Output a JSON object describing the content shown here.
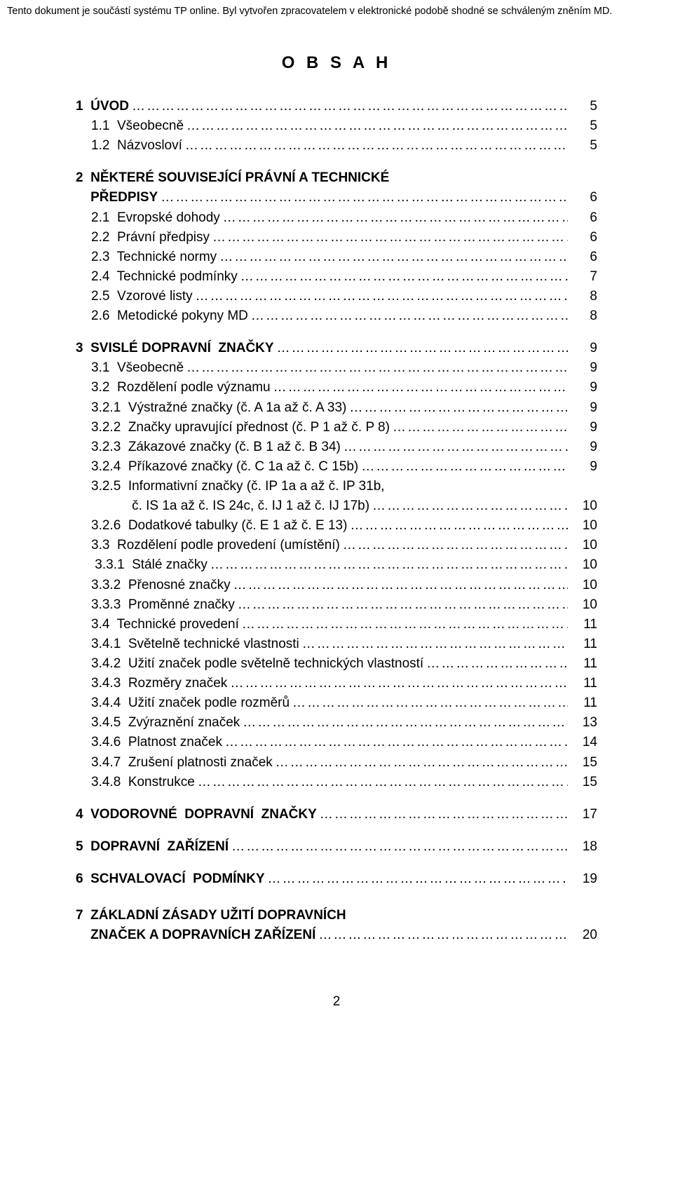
{
  "header_text": "Tento dokument je součástí systému TP online. Byl vytvořen zpracovatelem v elektronické podobě shodné se schváleným zněním MD.",
  "title": "O B S A H",
  "page_number": "2",
  "toc": [
    {
      "label": "1  ÚVOD",
      "page": "5",
      "bold": true,
      "indent": 0
    },
    {
      "label": "1.1  Všeobecně",
      "page": "5",
      "bold": false,
      "indent": 1
    },
    {
      "label": "1.2  Názvosloví",
      "page": "5",
      "bold": false,
      "indent": 1
    },
    {
      "gap": "m"
    },
    {
      "label": "2  NĚKTERÉ SOUVISEJÍCÍ PRÁVNÍ A TECHNICKÉ",
      "bold": true,
      "indent": 0,
      "nobreak": true
    },
    {
      "label": "    PŘEDPISY",
      "page": "6",
      "bold": true,
      "indent": 0
    },
    {
      "label": "2.1  Evropské dohody",
      "page": "6",
      "bold": false,
      "indent": 1
    },
    {
      "label": "2.2  Právní předpisy",
      "page": "6",
      "bold": false,
      "indent": 1
    },
    {
      "label": "2.3  Technické normy",
      "page": "6",
      "bold": false,
      "indent": 1
    },
    {
      "label": "2.4  Technické podmínky",
      "page": "7",
      "bold": false,
      "indent": 1
    },
    {
      "label": "2.5  Vzorové listy",
      "page": "8",
      "bold": false,
      "indent": 1
    },
    {
      "label": "2.6  Metodické pokyny MD",
      "page": "8",
      "bold": false,
      "indent": 1
    },
    {
      "gap": "m"
    },
    {
      "label": "3  SVISLÉ DOPRAVNÍ  ZNAČKY",
      "page": "9",
      "bold": true,
      "indent": 0
    },
    {
      "label": "3.1  Všeobecně",
      "page": "9",
      "bold": false,
      "indent": 1
    },
    {
      "label": "3.2  Rozdělení podle významu",
      "page": "9",
      "bold": false,
      "indent": 1
    },
    {
      "label": "3.2.1  Výstražné značky (č. A 1a až č. A 33)",
      "page": "9",
      "bold": false,
      "indent": 1
    },
    {
      "label": "3.2.2  Značky upravující přednost (č. P 1 až č. P 8)",
      "page": "9",
      "bold": false,
      "indent": 1
    },
    {
      "label": "3.2.3  Zákazové značky (č. B 1 až č. B 34)",
      "page": "9",
      "bold": false,
      "indent": 1
    },
    {
      "label": "3.2.4  Příkazové značky (č. C 1a až č. C 15b)",
      "page": "9",
      "bold": false,
      "indent": 1
    },
    {
      "label": "3.2.5  Informativní značky (č. IP 1a a až č. IP 31b,",
      "bold": false,
      "indent": 1,
      "nobreak": true
    },
    {
      "label": "           č. IS 1a až č. IS 24c, č. IJ 1 až č. IJ 17b)",
      "page": "10",
      "bold": false,
      "indent": 1
    },
    {
      "label": "3.2.6  Dodatkové tabulky (č. E 1 až č. E 13)",
      "page": "10",
      "bold": false,
      "indent": 1
    },
    {
      "label": "3.3  Rozdělení podle provedení (umístění)",
      "page": "10",
      "bold": false,
      "indent": 1
    },
    {
      "label": " 3.3.1  Stálé značky",
      "page": "10",
      "bold": false,
      "indent": 1
    },
    {
      "label": "3.3.2  Přenosné značky",
      "page": "10",
      "bold": false,
      "indent": 1
    },
    {
      "label": "3.3.3  Proměnné značky",
      "page": "10",
      "bold": false,
      "indent": 1
    },
    {
      "label": "3.4  Technické provedení",
      "page": "11",
      "bold": false,
      "indent": 1
    },
    {
      "label": "3.4.1  Světelně technické vlastnosti",
      "page": "11",
      "bold": false,
      "indent": 1
    },
    {
      "label": "3.4.2  Užití značek podle světelně technických vlastností",
      "page": "11",
      "bold": false,
      "indent": 1
    },
    {
      "label": "3.4.3  Rozměry značek",
      "page": "11",
      "bold": false,
      "indent": 1
    },
    {
      "label": "3.4.4  Užití značek podle rozměrů",
      "page": "11",
      "bold": false,
      "indent": 1
    },
    {
      "label": "3.4.5  Zvýraznění značek",
      "page": "13",
      "bold": false,
      "indent": 1
    },
    {
      "label": "3.4.6  Platnost značek",
      "page": "14",
      "bold": false,
      "indent": 1
    },
    {
      "label": "3.4.7  Zrušení platnosti značek",
      "page": "15",
      "bold": false,
      "indent": 1
    },
    {
      "label": "3.4.8  Konstrukce",
      "page": "15",
      "bold": false,
      "indent": 1
    },
    {
      "gap": "m"
    },
    {
      "label": "4  VODOROVNÉ  DOPRAVNÍ  ZNAČKY",
      "page": "17",
      "bold": true,
      "indent": 0
    },
    {
      "gap": "m"
    },
    {
      "label": "5  DOPRAVNÍ  ZAŘÍZENÍ",
      "page": "18",
      "bold": true,
      "indent": 0
    },
    {
      "gap": "m"
    },
    {
      "label": "6  SCHVALOVACÍ  PODMÍNKY",
      "page": "19",
      "bold": true,
      "indent": 0
    },
    {
      "gap": "l"
    },
    {
      "label": "7  ZÁKLADNÍ ZÁSADY UŽITÍ DOPRAVNÍCH",
      "bold": true,
      "indent": 0,
      "nobreak": true
    },
    {
      "label": "    ZNAČEK A DOPRAVNÍCH ZAŘÍZENÍ",
      "page": "20",
      "bold": true,
      "indent": 0
    }
  ],
  "colors": {
    "text": "#000000",
    "background": "#ffffff"
  },
  "fonts": {
    "body_pt": 19,
    "header_pt": 14.5,
    "title_pt": 24
  }
}
